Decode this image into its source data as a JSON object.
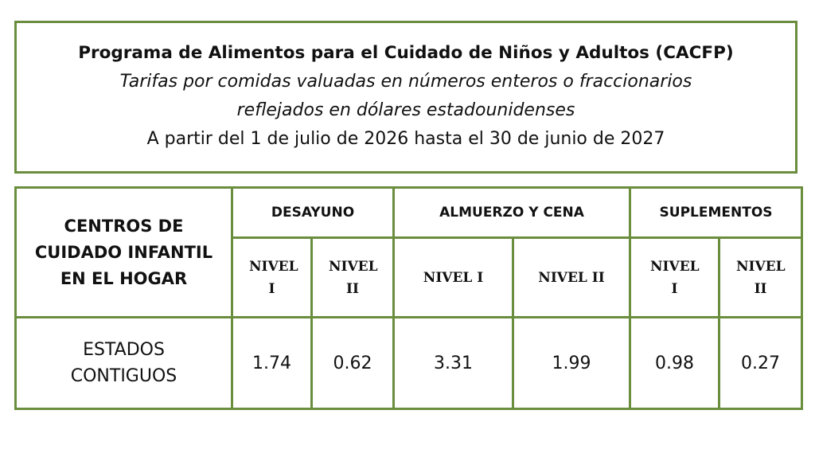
{
  "header": {
    "title": "Programa de Alimentos para el Cuidado de Niños y Adultos (CACFP)",
    "subtitle_line1": "Tarifas por comidas valuadas en números enteros o fraccionarios",
    "subtitle_line2": "reflejados en dólares estadounidenses",
    "date_range": "A partir del 1 de julio de 2026 hasta el 30 de junio de 2027"
  },
  "table": {
    "corner_header": "CENTROS DE CUIDADO INFANTIL EN EL HOGAR",
    "groups": {
      "breakfast": "DESAYUNO",
      "lunch_dinner": "ALMUERZO Y CENA",
      "supplements": "SUPLEMENTOS"
    },
    "levels": {
      "breakfast_1": "NIVEL I",
      "breakfast_2": "NIVEL II",
      "lunch_1": "NIVEL I",
      "lunch_2": "NIVEL II",
      "supp_1": "NIVEL I",
      "supp_2": "NIVEL II"
    },
    "row": {
      "label": "ESTADOS CONTIGUOS",
      "breakfast_1": "1.74",
      "breakfast_2": "0.62",
      "lunch_1": "3.31",
      "lunch_2": "1.99",
      "supp_1": "0.98",
      "supp_2": "0.27"
    }
  },
  "colors": {
    "border": "#6a8d3e",
    "text": "#111111"
  }
}
